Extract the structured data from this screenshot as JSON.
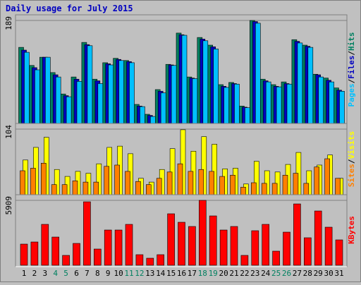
{
  "chart_data": [
    {
      "type": "bar",
      "title": "Daily usage for July 2015",
      "ylim": [
        0,
        189
      ],
      "yticks": [
        189
      ],
      "separator": "/",
      "series": [
        {
          "name": "Hits",
          "color": "#008060",
          "values": [
            140,
            107,
            122,
            94,
            55,
            86,
            149,
            82,
            112,
            120,
            116,
            36,
            18,
            63,
            109,
            166,
            86,
            158,
            144,
            72,
            76,
            33,
            189,
            82,
            72,
            77,
            154,
            144,
            91,
            84,
            66
          ]
        },
        {
          "name": "Files",
          "color": "#0000c0",
          "values": [
            135,
            103,
            122,
            90,
            52,
            82,
            145,
            79,
            110,
            118,
            114,
            33,
            16,
            60,
            108,
            163,
            84,
            155,
            141,
            69,
            74,
            31,
            187,
            79,
            69,
            74,
            151,
            142,
            90,
            80,
            62
          ]
        },
        {
          "name": "Pages",
          "color": "#00c0ff",
          "values": [
            131,
            99,
            122,
            86,
            50,
            78,
            143,
            74,
            108,
            116,
            112,
            32,
            14,
            57,
            107,
            162,
            83,
            152,
            137,
            67,
            73,
            30,
            184,
            77,
            68,
            73,
            148,
            140,
            86,
            77,
            60
          ]
        }
      ]
    },
    {
      "type": "bar",
      "ylim": [
        0,
        104
      ],
      "yticks": [
        104
      ],
      "separator": "/",
      "series": [
        {
          "name": "Visits",
          "color": "#ffff00",
          "values": [
            55,
            75,
            91,
            40,
            29,
            37,
            34,
            49,
            75,
            77,
            65,
            26,
            20,
            40,
            73,
            103,
            69,
            92,
            80,
            41,
            42,
            17,
            53,
            38,
            36,
            48,
            67,
            38,
            47,
            63,
            26
          ]
        },
        {
          "name": "Sites",
          "color": "#ff8000",
          "values": [
            38,
            42,
            50,
            16,
            16,
            22,
            20,
            20,
            45,
            47,
            37,
            21,
            16,
            26,
            36,
            49,
            37,
            40,
            37,
            29,
            31,
            12,
            19,
            18,
            18,
            31,
            34,
            18,
            44,
            57,
            26
          ]
        }
      ]
    },
    {
      "type": "bar",
      "ylim": [
        0,
        5909
      ],
      "yticks": [
        5909
      ],
      "categories": [
        1,
        2,
        3,
        4,
        5,
        6,
        7,
        8,
        9,
        10,
        11,
        12,
        13,
        14,
        15,
        16,
        17,
        18,
        19,
        20,
        21,
        22,
        23,
        24,
        25,
        26,
        27,
        28,
        29,
        30,
        31
      ],
      "label_colors": [
        "#000000",
        "#000000",
        "#000000",
        "#008060",
        "#008060",
        "#000000",
        "#000000",
        "#000000",
        "#000000",
        "#000000",
        "#008060",
        "#008060",
        "#000000",
        "#000000",
        "#000000",
        "#000000",
        "#000000",
        "#008060",
        "#008060",
        "#000000",
        "#000000",
        "#000000",
        "#000000",
        "#000000",
        "#008060",
        "#008060",
        "#000000",
        "#000000",
        "#000000",
        "#000000",
        "#000000"
      ],
      "series": [
        {
          "name": "KBytes",
          "color": "#ff0000",
          "values": [
            1926,
            2119,
            3724,
            2568,
            899,
            1990,
            5778,
            1477,
            3210,
            3210,
            3724,
            963,
            642,
            963,
            4687,
            3916,
            3531,
            5909,
            4494,
            3210,
            3531,
            899,
            3146,
            3724,
            1284,
            3017,
            5585,
            2504,
            4943,
            3467,
            2311
          ]
        }
      ]
    }
  ]
}
